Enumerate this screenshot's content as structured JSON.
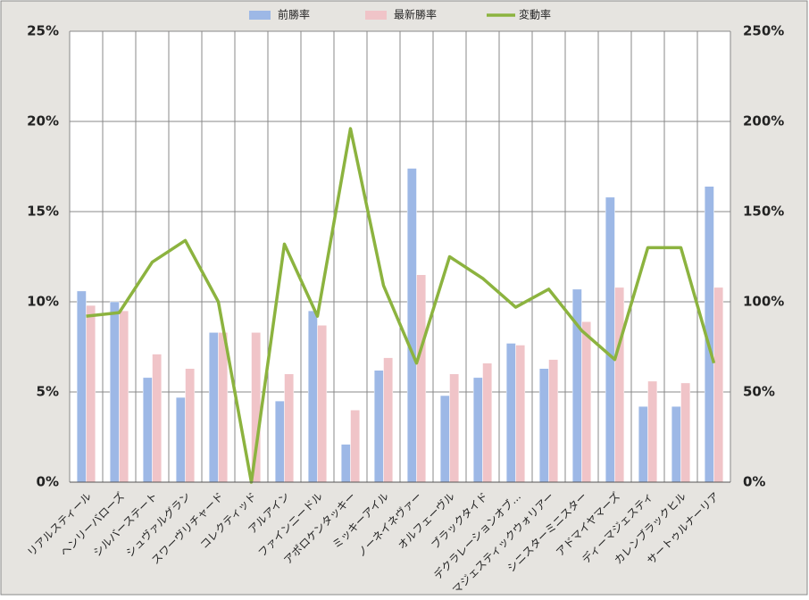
{
  "chart_data": {
    "type": "bar-line",
    "categories": [
      "リアルスティール",
      "ヘンリーバローズ",
      "シルバーステート",
      "シュヴァルグラン",
      "スワーヴリチャード",
      "コレクティッド",
      "アルアイン",
      "ファインニードル",
      "アポロケンタッキー",
      "ミッキーアイル",
      "ノーネイネヴァー",
      "オルフェーヴル",
      "ブラックタイド",
      "デクラレーションオブ…",
      "マジェスティックウォリアー",
      "シニスターミニスター",
      "アドマイヤマーズ",
      "ディーマジェスティ",
      "カレンブラックヒル",
      "サートゥルナーリア"
    ],
    "series": [
      {
        "name": "前勝率",
        "color": "#9db8e6",
        "type": "bar",
        "values": [
          10.6,
          10.0,
          5.8,
          4.7,
          8.3,
          0,
          4.5,
          9.5,
          2.1,
          6.2,
          17.4,
          4.8,
          5.8,
          7.7,
          6.3,
          10.7,
          15.8,
          4.2,
          4.2,
          16.4
        ]
      },
      {
        "name": "最新勝率",
        "color": "#f0c4c8",
        "type": "bar",
        "values": [
          9.8,
          9.5,
          7.1,
          6.3,
          8.3,
          8.3,
          6.0,
          8.7,
          4.0,
          6.9,
          11.5,
          6.0,
          6.6,
          7.6,
          6.8,
          8.9,
          10.8,
          5.6,
          5.5,
          10.8
        ]
      },
      {
        "name": "変動率",
        "color": "#8cb33f",
        "type": "line",
        "axis": "y2",
        "values": [
          92,
          94,
          122,
          134,
          100,
          0,
          132,
          92,
          196,
          109,
          66,
          125,
          113,
          97,
          107,
          84,
          68,
          130,
          130,
          66
        ]
      }
    ],
    "ylim": [
      0,
      25
    ],
    "yticks": [
      {
        "value": 0,
        "label": "0%"
      },
      {
        "value": 5,
        "label": "5%"
      },
      {
        "value": 10,
        "label": "10%"
      },
      {
        "value": 15,
        "label": "15%"
      },
      {
        "value": 20,
        "label": "20%"
      },
      {
        "value": 25,
        "label": "25%"
      }
    ],
    "y2lim": [
      0,
      250
    ],
    "y2ticks": [
      {
        "value": 0,
        "label": "0%"
      },
      {
        "value": 50,
        "label": "50%"
      },
      {
        "value": 100,
        "label": "100%"
      },
      {
        "value": 150,
        "label": "150%"
      },
      {
        "value": 200,
        "label": "200%"
      },
      {
        "value": 250,
        "label": "250%"
      }
    ],
    "grid": true,
    "legend": "top"
  }
}
